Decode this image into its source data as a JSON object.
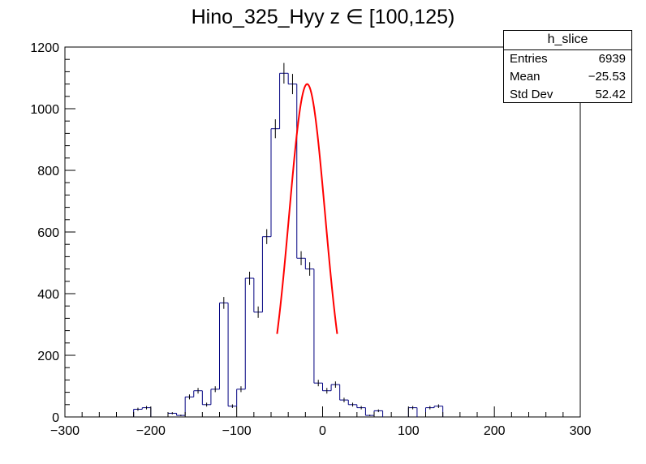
{
  "title": "Hino_325_Hyy z  ∈ [100,125)",
  "stats": {
    "name": "h_slice",
    "rows": [
      {
        "label": "Entries",
        "value": "6939"
      },
      {
        "label": "Mean",
        "value": "−25.53"
      },
      {
        "label": "Std Dev",
        "value": "52.42"
      }
    ]
  },
  "colors": {
    "hist": "#000080",
    "fit": "#ff0000",
    "axis": "#000000"
  },
  "chart_data": {
    "type": "bar",
    "xlim": [
      -300,
      300
    ],
    "ylim": [
      0,
      1200
    ],
    "x_ticks": [
      -300,
      -200,
      -100,
      0,
      100,
      200,
      300
    ],
    "x_tick_labels": [
      "−300",
      "−200",
      "−100",
      "0",
      "100",
      "200",
      "300"
    ],
    "y_ticks": [
      0,
      200,
      400,
      600,
      800,
      1000,
      1200
    ],
    "y_tick_labels": [
      "0",
      "200",
      "400",
      "600",
      "800",
      "1000",
      "1200"
    ],
    "bin_edges": [
      -300,
      -290,
      -280,
      -270,
      -260,
      -250,
      -240,
      -230,
      -220,
      -210,
      -200,
      -190,
      -180,
      -170,
      -160,
      -150,
      -140,
      -130,
      -120,
      -110,
      -100,
      -90,
      -80,
      -70,
      -60,
      -50,
      -40,
      -30,
      -20,
      -10,
      0,
      10,
      20,
      30,
      40,
      50,
      60,
      70,
      80,
      90,
      100,
      110,
      120,
      130,
      140,
      150,
      160,
      170,
      180,
      190,
      200,
      210,
      220,
      230,
      240,
      250,
      260,
      270,
      280,
      290,
      300
    ],
    "values": [
      0,
      0,
      0,
      0,
      0,
      0,
      0,
      0,
      25,
      30,
      0,
      0,
      12,
      5,
      65,
      85,
      40,
      90,
      370,
      35,
      90,
      450,
      340,
      585,
      935,
      1115,
      1080,
      515,
      480,
      110,
      85,
      105,
      55,
      40,
      30,
      5,
      20,
      0,
      0,
      0,
      30,
      0,
      30,
      35,
      0,
      0,
      0,
      0,
      0,
      0,
      0,
      0,
      0,
      0,
      0,
      0,
      0,
      0,
      0,
      0
    ],
    "fit": {
      "type": "gaussian",
      "constant": 1080,
      "mean": -18,
      "sigma": 21,
      "range": [
        -53,
        17
      ]
    }
  }
}
